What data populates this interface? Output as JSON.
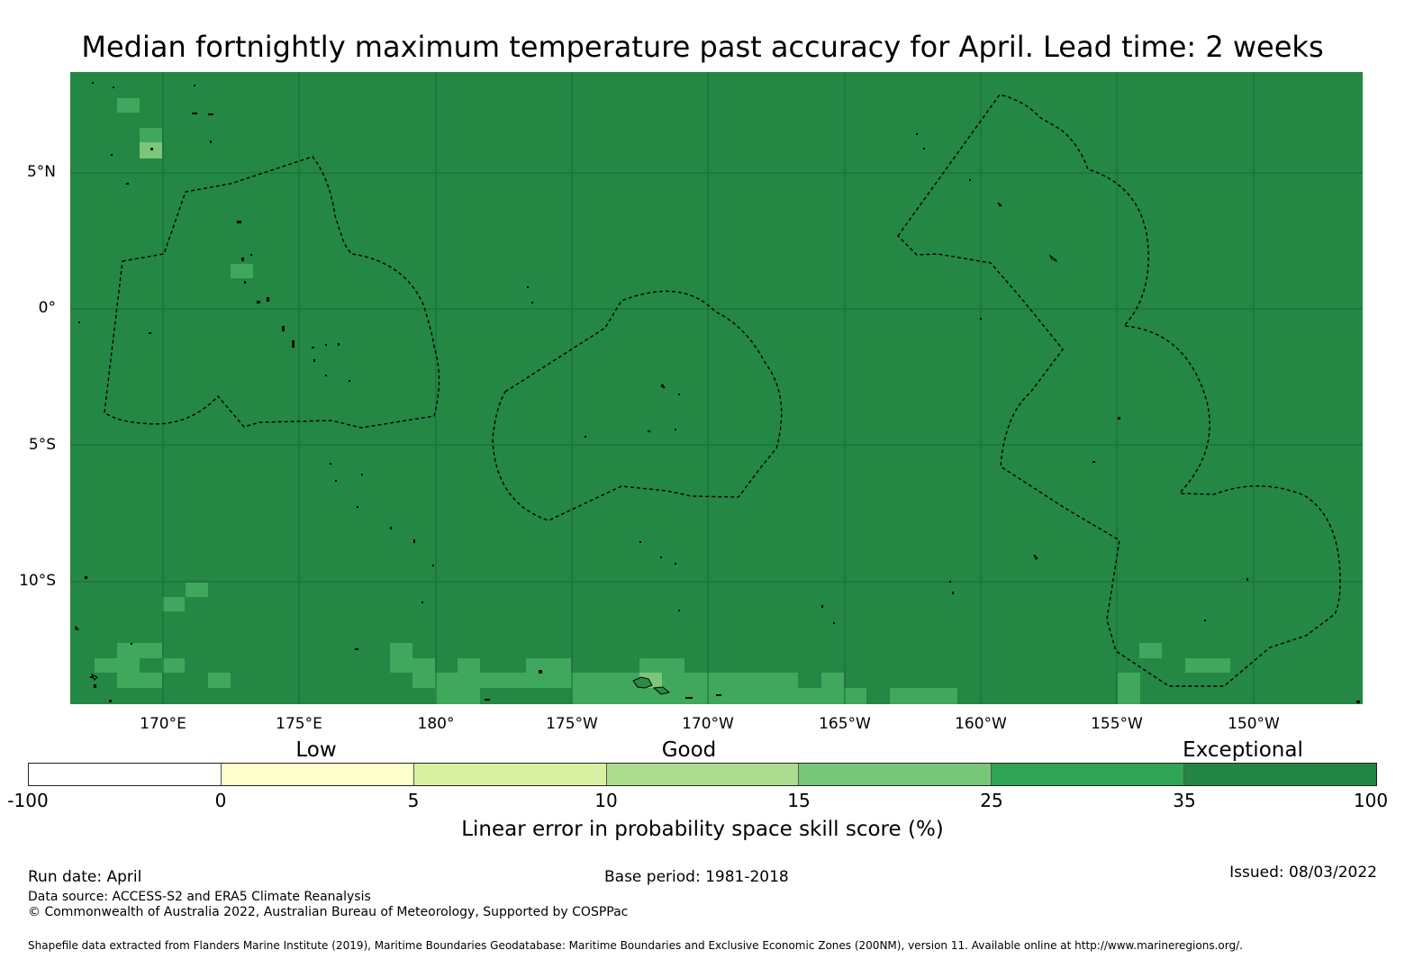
{
  "title": "Median fortnightly maximum temperature past accuracy for April. Lead time: 2 weeks",
  "map": {
    "background_color": "#248744",
    "lat_labels": [
      "5°N",
      "0°",
      "5°S",
      "10°S"
    ],
    "lon_labels": [
      "170°E",
      "175°E",
      "180°",
      "175°W",
      "170°W",
      "165°W",
      "160°W",
      "155°W",
      "150°W"
    ],
    "category_colors": {
      "25_35": "#3fa85c",
      "15_25": "#7bc67a"
    }
  },
  "colorbar": {
    "band_labels": [
      "Low",
      "Good",
      "Exceptional"
    ],
    "ticks": [
      "-100",
      "0",
      "5",
      "10",
      "15",
      "25",
      "35",
      "100"
    ],
    "colors": [
      "#ffffff",
      "#ffffcc",
      "#d9f0a3",
      "#addd8e",
      "#78c679",
      "#31a354",
      "#238443"
    ],
    "title": "Linear error in probability space skill score (%)"
  },
  "footer": {
    "run_date": "Run date: April",
    "base_period": "Base period: 1981-2018",
    "issued": "Issued: 08/03/2022",
    "data_source": "Data source: ACCESS-S2 and ERA5 Climate Reanalysis",
    "copyright": "© Commonwealth of Australia 2022, Australian Bureau of Meteorology, Supported by COSPPac",
    "shapefile": "Shapefile data extracted from Flanders Marine Institute (2019), Maritime Boundaries Geodatabase: Maritime Boundaries and Exclusive Economic Zones (200NM), version 11. Available online at http://www.marineregions.org/."
  }
}
